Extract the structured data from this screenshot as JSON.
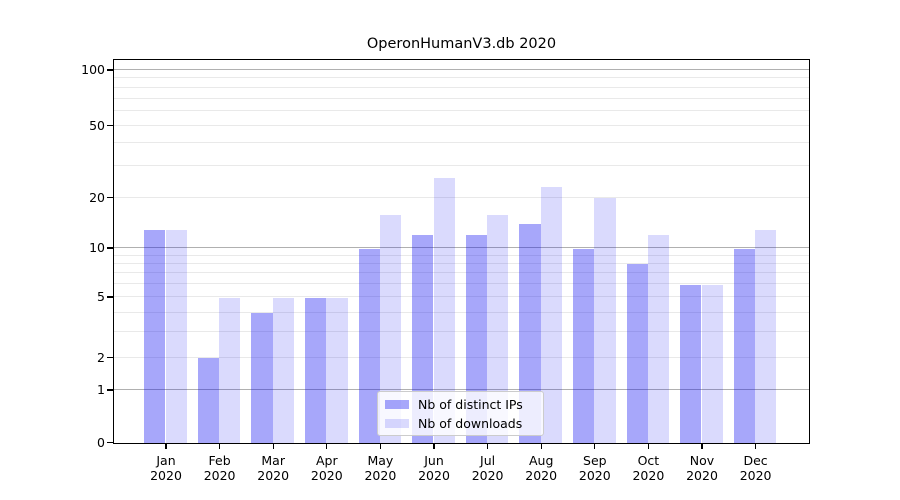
{
  "title": "OperonHumanV3.db 2020",
  "colors": {
    "bar_distinct_ips": "rgba(10,10,240,0.36)",
    "bar_downloads": "rgba(10,10,240,0.15)",
    "grid_major": "#b0b0b0",
    "grid_minor": "#e9e9e9"
  },
  "y_axis": {
    "tick_labels": [
      "100",
      "50",
      "20",
      "10",
      "5",
      "2",
      "1",
      "0"
    ]
  },
  "x_axis": {
    "months": [
      "Jan",
      "Feb",
      "Mar",
      "Apr",
      "May",
      "Jun",
      "Jul",
      "Aug",
      "Sep",
      "Oct",
      "Nov",
      "Dec"
    ],
    "year": "2020"
  },
  "legend": {
    "items": [
      {
        "label": "Nb of distinct IPs",
        "color": "rgba(10,10,240,0.36)"
      },
      {
        "label": "Nb of downloads",
        "color": "rgba(10,10,240,0.15)"
      }
    ]
  },
  "chart_data": {
    "type": "bar",
    "title": "OperonHumanV3.db 2020",
    "categories": [
      "Jan 2020",
      "Feb 2020",
      "Mar 2020",
      "Apr 2020",
      "May 2020",
      "Jun 2020",
      "Jul 2020",
      "Aug 2020",
      "Sep 2020",
      "Oct 2020",
      "Nov 2020",
      "Dec 2020"
    ],
    "series": [
      {
        "name": "Nb of distinct IPs",
        "values": [
          13,
          2,
          4,
          5,
          10,
          12,
          12,
          14,
          10,
          8,
          6,
          10
        ]
      },
      {
        "name": "Nb of downloads",
        "values": [
          13,
          5,
          5,
          5,
          16,
          26,
          16,
          23,
          20,
          12,
          6,
          13
        ]
      }
    ],
    "xlabel": "",
    "ylabel": "",
    "yscale": "asinh (log-like)",
    "y_ticks": [
      0,
      1,
      2,
      5,
      10,
      20,
      50,
      100
    ],
    "ylim": [
      0,
      115
    ],
    "grid": true,
    "legend_position": "lower center"
  }
}
